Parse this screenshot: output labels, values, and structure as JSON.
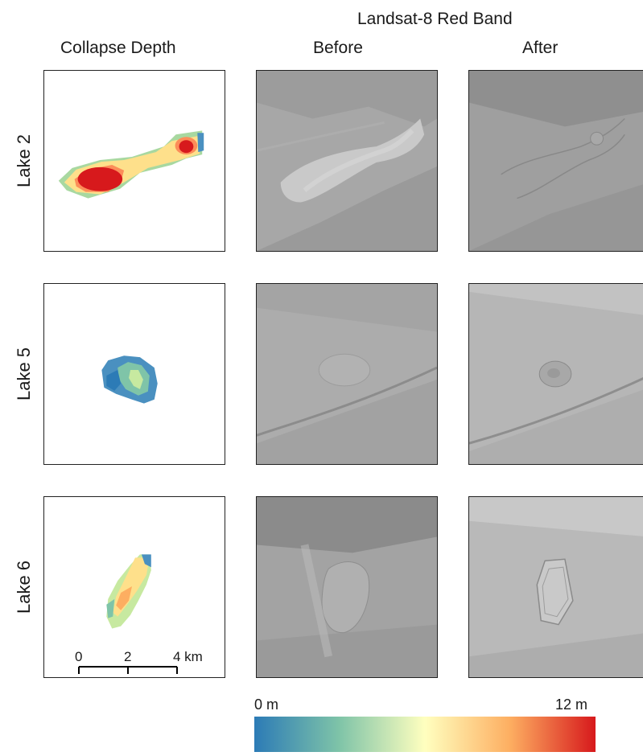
{
  "headers": {
    "group": "Landsat-8 Red Band",
    "col_depth": "Collapse Depth",
    "col_before": "Before",
    "col_after": "After"
  },
  "rows": [
    {
      "label": "Lake 2"
    },
    {
      "label": "Lake 5"
    },
    {
      "label": "Lake 6"
    }
  ],
  "scalebar": {
    "ticks": [
      "0",
      "2",
      "4 km"
    ]
  },
  "colorbar": {
    "min_label": "0 m",
    "max_label": "12 m",
    "colormap": [
      "#2c7bb6",
      "#7fc4a8",
      "#ffffbf",
      "#fdae61",
      "#d7191c"
    ]
  }
}
